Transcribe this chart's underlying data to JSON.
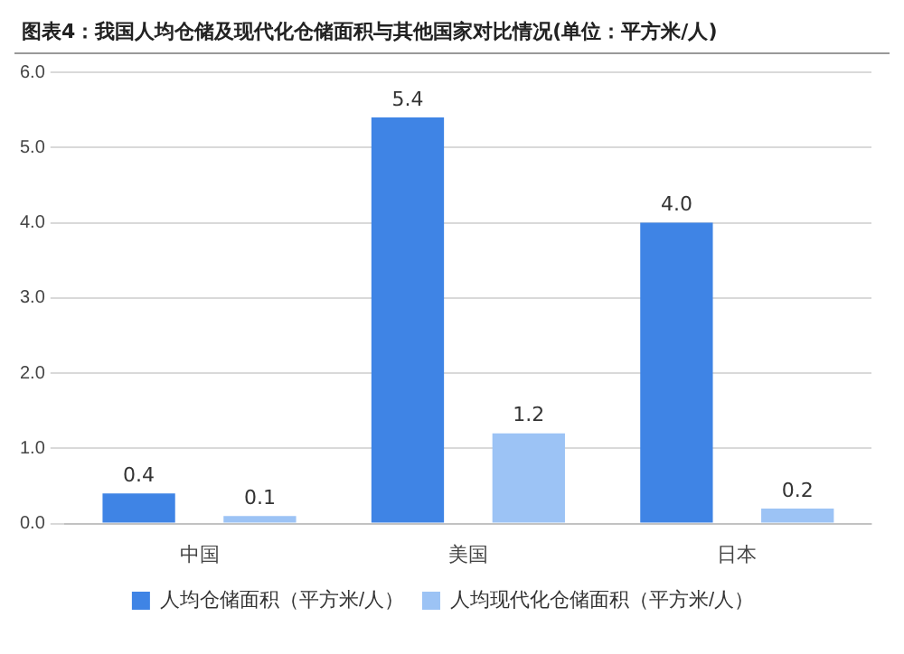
{
  "chart_data": {
    "type": "bar",
    "title": "图表4：我国人均仓储及现代化仓储面积与其他国家对比情况(单位：平方米/人)",
    "categories": [
      "中国",
      "美国",
      "日本"
    ],
    "series": [
      {
        "name": "人均仓储面积（平方米/人）",
        "color": "#3f84e5",
        "values": [
          0.4,
          5.4,
          4.0
        ],
        "value_labels": [
          "0.4",
          "5.4",
          "4.0"
        ]
      },
      {
        "name": "人均现代化仓储面积（平方米/人）",
        "color": "#9cc3f5",
        "values": [
          0.1,
          1.2,
          0.2
        ],
        "value_labels": [
          "0.1",
          "1.2",
          "0.2"
        ]
      }
    ],
    "ylim": [
      0,
      6
    ],
    "yticks": [
      {
        "value": 0,
        "label": "0.0"
      },
      {
        "value": 1,
        "label": "1.0"
      },
      {
        "value": 2,
        "label": "2.0"
      },
      {
        "value": 3,
        "label": "3.0"
      },
      {
        "value": 4,
        "label": "4.0"
      },
      {
        "value": 5,
        "label": "5.0"
      },
      {
        "value": 6,
        "label": "6.0"
      }
    ],
    "grid": "y",
    "legend": "bottom"
  }
}
